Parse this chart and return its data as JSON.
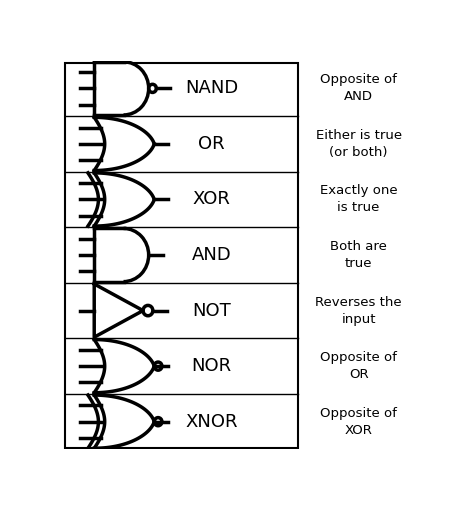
{
  "gates": [
    "NAND",
    "OR",
    "XOR",
    "AND",
    "NOT",
    "NOR",
    "XNOR"
  ],
  "descriptions": [
    "Opposite of\nAND",
    "Either is true\n(or both)",
    "Exactly one\nis true",
    "Both are\ntrue",
    "Reverses the\ninput",
    "Opposite of\nOR",
    "Opposite of\nXOR"
  ],
  "bg_color": "#ffffff",
  "line_color": "#000000",
  "text_color": "#000000",
  "gate_lw": 2.5,
  "figsize": [
    4.74,
    5.05
  ],
  "dpi": 100
}
